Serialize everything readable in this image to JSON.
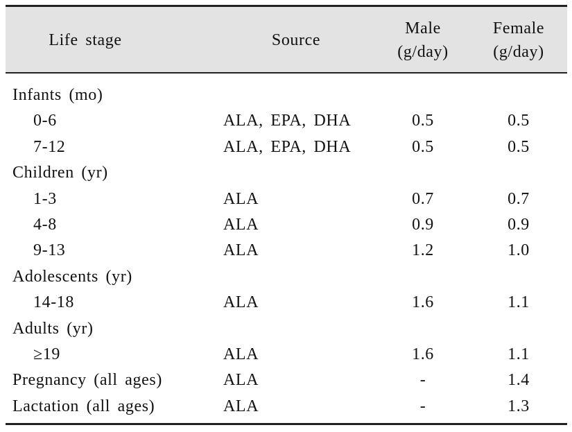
{
  "table": {
    "header": [
      [
        "Life stage"
      ],
      [
        "Source"
      ],
      [
        "Male",
        "(g/day)"
      ],
      [
        "Female",
        "(g/day)"
      ]
    ],
    "body": [
      {
        "group": "Infants (mo)",
        "rows": [
          [
            "0-6",
            "ALA, EPA, DHA",
            "0.5",
            "0.5"
          ],
          [
            "7-12",
            "ALA, EPA, DHA",
            "0.5",
            "0.5"
          ]
        ]
      },
      {
        "group": "Children (yr)",
        "rows": [
          [
            "1-3",
            "ALA",
            "0.7",
            "0.7"
          ],
          [
            "4-8",
            "ALA",
            "0.9",
            "0.9"
          ],
          [
            "9-13",
            "ALA",
            "1.2",
            "1.0"
          ]
        ]
      },
      {
        "group": "Adolescents (yr)",
        "rows": [
          [
            "14-18",
            "ALA",
            "1.6",
            "1.1"
          ]
        ]
      },
      {
        "group": "Adults (yr)",
        "rows": [
          [
            "≥19",
            "ALA",
            "1.6",
            "1.1"
          ]
        ]
      },
      {
        "row": [
          "Pregnancy (all ages)",
          "ALA",
          "-",
          "1.4"
        ]
      },
      {
        "row": [
          "Lactation (all ages)",
          "ALA",
          "-",
          "1.3"
        ]
      }
    ]
  }
}
